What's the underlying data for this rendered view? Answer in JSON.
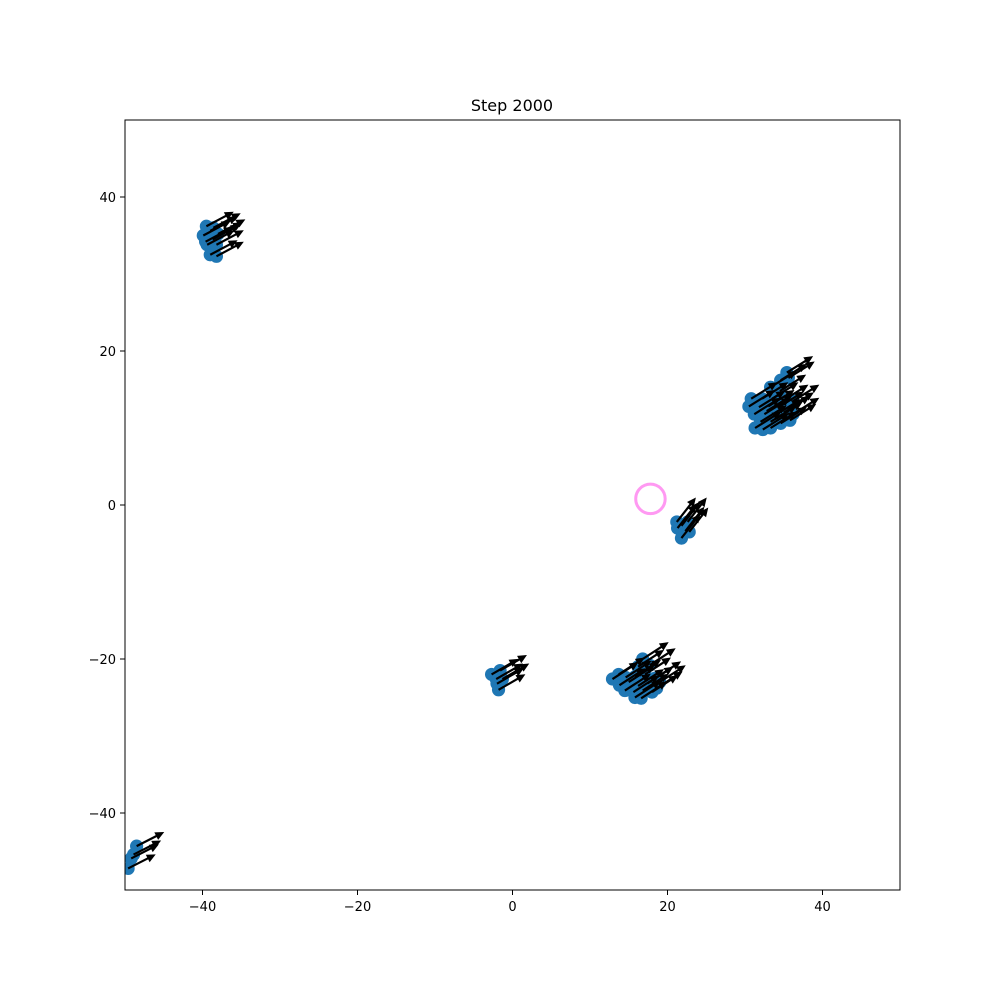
{
  "chart_data": {
    "type": "scatter",
    "title": "Step 2000",
    "xlabel": "",
    "ylabel": "",
    "xlim": [
      -50,
      50
    ],
    "ylim": [
      -50,
      50
    ],
    "xticks": [
      -40,
      -20,
      0,
      20,
      40
    ],
    "yticks": [
      -40,
      -20,
      0,
      20,
      40
    ],
    "grid": false,
    "colors": {
      "points": "#1f77b4",
      "arrows": "#000000",
      "target": "#ff99f2"
    },
    "target": {
      "x": 17.8,
      "y": 0.8,
      "radius": 1.9
    },
    "point_radius": 0.85,
    "arrow_length": 4.0,
    "clusters": [
      {
        "dir": 28,
        "points": [
          [
            -39.5,
            36.2
          ],
          [
            -38.6,
            36.0
          ],
          [
            -38.0,
            35.2
          ],
          [
            -39.9,
            35.0
          ],
          [
            -38.7,
            34.5
          ],
          [
            -39.4,
            33.8
          ],
          [
            -38.2,
            33.8
          ],
          [
            -39.0,
            32.5
          ],
          [
            -38.2,
            32.3
          ],
          [
            -39.0,
            35.6
          ],
          [
            -38.4,
            34.8
          ],
          [
            -39.6,
            34.2
          ]
        ]
      },
      {
        "dir": 32,
        "points": [
          [
            35.4,
            17.2
          ],
          [
            34.6,
            16.2
          ],
          [
            35.6,
            16.5
          ],
          [
            33.3,
            15.3
          ],
          [
            34.5,
            14.8
          ],
          [
            30.8,
            13.8
          ],
          [
            32.2,
            13.8
          ],
          [
            33.5,
            13.8
          ],
          [
            34.8,
            13.5
          ],
          [
            36.2,
            13.5
          ],
          [
            30.5,
            12.8
          ],
          [
            31.8,
            12.7
          ],
          [
            33.0,
            12.8
          ],
          [
            34.2,
            12.6
          ],
          [
            35.5,
            12.5
          ],
          [
            31.2,
            11.8
          ],
          [
            32.5,
            11.8
          ],
          [
            33.8,
            11.6
          ],
          [
            36.2,
            11.8
          ],
          [
            32.0,
            10.8
          ],
          [
            33.3,
            10.8
          ],
          [
            34.6,
            10.6
          ],
          [
            35.8,
            11.0
          ],
          [
            31.3,
            10.0
          ],
          [
            32.3,
            9.8
          ],
          [
            33.3,
            10.0
          ],
          [
            32.8,
            12.2
          ],
          [
            34.0,
            11.2
          ],
          [
            35.0,
            12.0
          ]
        ]
      },
      {
        "dir": 52,
        "points": [
          [
            21.2,
            -2.2
          ],
          [
            21.8,
            -2.7
          ],
          [
            22.6,
            -2.2
          ],
          [
            21.3,
            -3.0
          ],
          [
            22.3,
            -3.4
          ],
          [
            21.8,
            -4.3
          ],
          [
            22.8,
            -3.5
          ]
        ]
      },
      {
        "dir": 30,
        "points": [
          [
            -2.7,
            -22.0
          ],
          [
            -1.6,
            -21.5
          ],
          [
            -2.1,
            -22.6
          ],
          [
            -1.3,
            -22.6
          ],
          [
            -2.0,
            -23.2
          ],
          [
            -1.8,
            -24.0
          ]
        ]
      },
      {
        "dir": 33,
        "points": [
          [
            16.8,
            -20.0
          ],
          [
            17.7,
            -20.8
          ],
          [
            16.2,
            -21.0
          ],
          [
            13.7,
            -22.0
          ],
          [
            12.9,
            -22.6
          ],
          [
            14.6,
            -22.4
          ],
          [
            15.8,
            -22.3
          ],
          [
            17.1,
            -22.0
          ],
          [
            18.4,
            -22.5
          ],
          [
            13.8,
            -23.4
          ],
          [
            15.0,
            -23.0
          ],
          [
            16.2,
            -23.5
          ],
          [
            17.4,
            -23.2
          ],
          [
            18.6,
            -23.8
          ],
          [
            14.5,
            -24.1
          ],
          [
            15.6,
            -24.3
          ],
          [
            16.8,
            -24.1
          ],
          [
            18.0,
            -24.3
          ],
          [
            15.8,
            -25.0
          ],
          [
            16.6,
            -25.1
          ],
          [
            19.0,
            -23.0
          ]
        ]
      },
      {
        "dir": 27,
        "points": [
          [
            -48.5,
            -44.3
          ],
          [
            -48.9,
            -45.4
          ],
          [
            -49.2,
            -45.9
          ],
          [
            -49.6,
            -47.2
          ]
        ]
      }
    ]
  }
}
